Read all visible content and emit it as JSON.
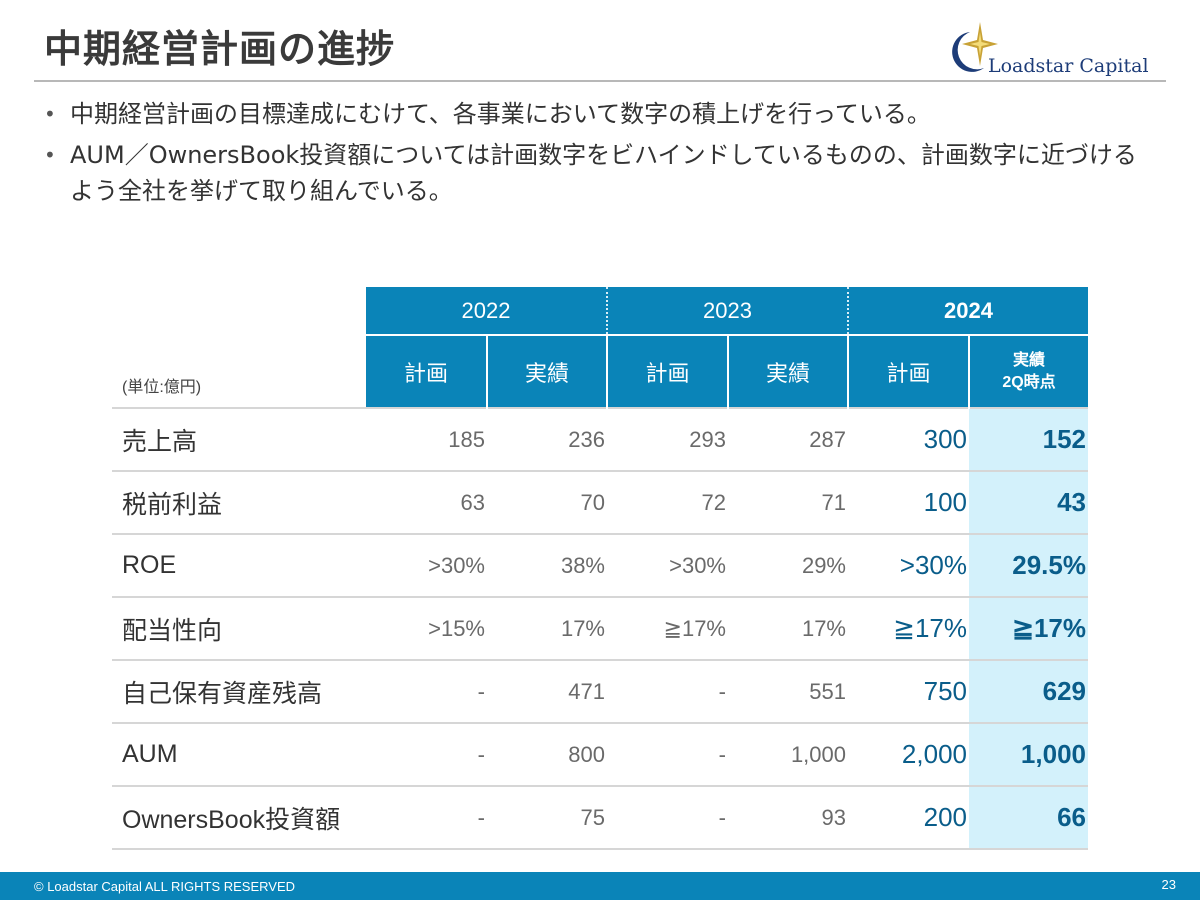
{
  "title": "中期経営計画の進捗",
  "logo": {
    "text": "Loadstar Capital",
    "icon": "star-crescent-logo-icon"
  },
  "bullets": [
    "中期経営計画の目標達成にむけて、各事業において数字の積上げを行っている。",
    "AUM／OwnersBook投資額については計画数字をビハインドしているものの、計画数字に近づけるよう全社を挙げて取り組んでいる。"
  ],
  "table": {
    "unit": "(単位:億円)",
    "years": [
      "2022",
      "2023",
      "2024"
    ],
    "sub_headers": [
      "計画",
      "実績",
      "計画",
      "実績",
      "計画",
      "実績",
      "2Q時点"
    ],
    "rows": [
      {
        "label": "売上高",
        "values": [
          "185",
          "236",
          "293",
          "287",
          "300",
          "152"
        ]
      },
      {
        "label": "税前利益",
        "values": [
          "63",
          "70",
          "72",
          "71",
          "100",
          "43"
        ]
      },
      {
        "label": "ROE",
        "values": [
          ">30%",
          "38%",
          ">30%",
          "29%",
          ">30%",
          "29.5%"
        ]
      },
      {
        "label": "配当性向",
        "values": [
          ">15%",
          "17%",
          "≧17%",
          "17%",
          "≧17%",
          "≧17%"
        ]
      },
      {
        "label": "自己保有資産残高",
        "values": [
          "-",
          "471",
          "-",
          "551",
          "750",
          "629"
        ]
      },
      {
        "label": "AUM",
        "values": [
          "-",
          "800",
          "-",
          "1,000",
          "2,000",
          "1,000"
        ]
      },
      {
        "label": "OwnersBook投資額",
        "values": [
          "-",
          "75",
          "-",
          "93",
          "200",
          "66"
        ]
      }
    ]
  },
  "footer": {
    "copyright": "© Loadstar Capital ALL RIGHTS RESERVED",
    "page_number": "23"
  },
  "colors": {
    "header_blue": "#0a84b8",
    "highlight": "#d3f1fb",
    "value_blue": "#0a5d8a"
  }
}
